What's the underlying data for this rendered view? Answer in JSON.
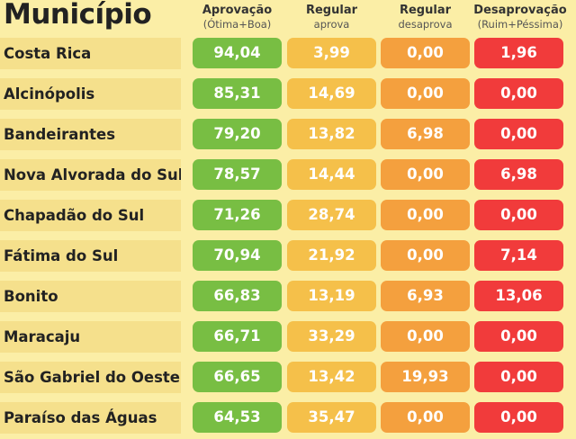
{
  "header": {
    "title": "Município",
    "col1": {
      "label": "Aprovação",
      "sub": "(Ótima+Boa)"
    },
    "col2": {
      "label": "Regular",
      "sub": "aprova"
    },
    "col3": {
      "label": "Regular",
      "sub": "desaprova"
    },
    "col4": {
      "label": "Desaprovação",
      "sub": "(Ruim+Péssima)"
    }
  },
  "colors": {
    "aprovacao": "#78be43",
    "regular_aprova": "#f5c04a",
    "regular_desaprova": "#f4a03e",
    "desaprovacao": "#f13b3b",
    "background": "#fbeea6"
  },
  "chart_data": {
    "type": "table",
    "columns": [
      "Aprovação (Ótima+Boa)",
      "Regular aprova",
      "Regular desaprova",
      "Desaprovação (Ruim+Péssima)"
    ],
    "rows": [
      {
        "municipio": "Costa Rica",
        "values": [
          "94,04",
          "3,99",
          "0,00",
          "1,96"
        ]
      },
      {
        "municipio": "Alcinópolis",
        "values": [
          "85,31",
          "14,69",
          "0,00",
          "0,00"
        ]
      },
      {
        "municipio": "Bandeirantes",
        "values": [
          "79,20",
          "13,82",
          "6,98",
          "0,00"
        ]
      },
      {
        "municipio": "Nova Alvorada do Sul",
        "values": [
          "78,57",
          "14,44",
          "0,00",
          "6,98"
        ]
      },
      {
        "municipio": "Chapadão do Sul",
        "values": [
          "71,26",
          "28,74",
          "0,00",
          "0,00"
        ]
      },
      {
        "municipio": "Fátima do Sul",
        "values": [
          "70,94",
          "21,92",
          "0,00",
          "7,14"
        ]
      },
      {
        "municipio": "Bonito",
        "values": [
          "66,83",
          "13,19",
          "6,93",
          "13,06"
        ]
      },
      {
        "municipio": "Maracaju",
        "values": [
          "66,71",
          "33,29",
          "0,00",
          "0,00"
        ]
      },
      {
        "municipio": "São Gabriel do Oeste",
        "values": [
          "66,65",
          "13,42",
          "19,93",
          "0,00"
        ]
      },
      {
        "municipio": "Paraíso das Águas",
        "values": [
          "64,53",
          "35,47",
          "0,00",
          "0,00"
        ]
      }
    ]
  }
}
